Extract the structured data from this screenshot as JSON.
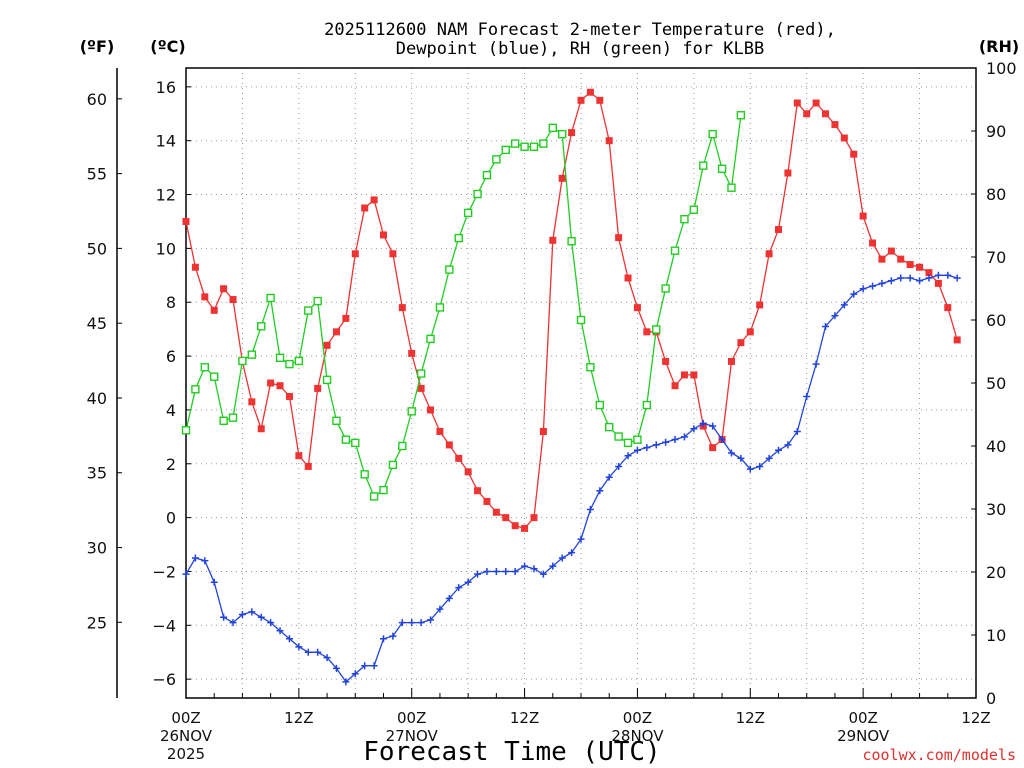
{
  "chart_data": {
    "type": "line",
    "title_line1": "2025112600 NAM Forecast 2-meter Temperature (red),",
    "title_line2": "Dewpoint (blue), RH (green) for KLBB",
    "left_outer_unit": "(ºF)",
    "left_inner_unit": "(ºC)",
    "right_unit": "(RH)",
    "xlabel": "Forecast Time (UTC)",
    "credit": "coolwx.com/models",
    "x_ticks": [
      {
        "hour": 0,
        "label": "00Z",
        "date": "26NOV",
        "year": "2025"
      },
      {
        "hour": 12,
        "label": "12Z",
        "date": "",
        "year": ""
      },
      {
        "hour": 24,
        "label": "00Z",
        "date": "27NOV",
        "year": ""
      },
      {
        "hour": 36,
        "label": "12Z",
        "date": "",
        "year": ""
      },
      {
        "hour": 48,
        "label": "00Z",
        "date": "28NOV",
        "year": ""
      },
      {
        "hour": 60,
        "label": "12Z",
        "date": "",
        "year": ""
      },
      {
        "hour": 72,
        "label": "00Z",
        "date": "29NOV",
        "year": ""
      },
      {
        "hour": 84,
        "label": "12Z",
        "date": "",
        "year": ""
      }
    ],
    "x_range_hours": [
      0,
      84
    ],
    "celsius_range": [
      -6.7,
      16.7
    ],
    "celsius_ticks": [
      -6,
      -4,
      -2,
      0,
      2,
      4,
      6,
      8,
      10,
      12,
      14,
      16
    ],
    "fahrenheit_ticks": [
      25,
      30,
      35,
      40,
      45,
      50,
      55,
      60
    ],
    "rh_range": [
      0,
      100
    ],
    "rh_ticks": [
      0,
      10,
      20,
      30,
      40,
      50,
      60,
      70,
      80,
      90,
      100
    ],
    "grid": "dotted",
    "colors": {
      "temperature": "#ee3333",
      "dewpoint": "#2244dd",
      "rh": "#22cc22",
      "credit": "#e03030"
    },
    "series": [
      {
        "key": "temperature",
        "unit": "C",
        "marker": "filled-square",
        "values": [
          [
            0,
            11.0
          ],
          [
            1,
            9.3
          ],
          [
            2,
            8.2
          ],
          [
            3,
            7.7
          ],
          [
            4,
            8.5
          ],
          [
            5,
            8.1
          ],
          [
            6,
            5.8
          ],
          [
            7,
            4.3
          ],
          [
            8,
            3.3
          ],
          [
            9,
            5.0
          ],
          [
            10,
            4.9
          ],
          [
            11,
            4.5
          ],
          [
            12,
            2.3
          ],
          [
            13,
            1.9
          ],
          [
            14,
            4.8
          ],
          [
            15,
            6.4
          ],
          [
            16,
            6.9
          ],
          [
            17,
            7.4
          ],
          [
            18,
            9.8
          ],
          [
            19,
            11.5
          ],
          [
            20,
            11.8
          ],
          [
            21,
            10.5
          ],
          [
            22,
            9.8
          ],
          [
            23,
            7.8
          ],
          [
            24,
            6.1
          ],
          [
            25,
            4.8
          ],
          [
            26,
            4.0
          ],
          [
            27,
            3.2
          ],
          [
            28,
            2.7
          ],
          [
            29,
            2.2
          ],
          [
            30,
            1.7
          ],
          [
            31,
            1.0
          ],
          [
            32,
            0.6
          ],
          [
            33,
            0.2
          ],
          [
            34,
            0.0
          ],
          [
            35,
            -0.3
          ],
          [
            36,
            -0.4
          ],
          [
            37,
            0.0
          ],
          [
            38,
            3.2
          ],
          [
            39,
            10.3
          ],
          [
            40,
            12.6
          ],
          [
            41,
            14.3
          ],
          [
            42,
            15.5
          ],
          [
            43,
            15.8
          ],
          [
            44,
            15.5
          ],
          [
            45,
            14.0
          ],
          [
            46,
            10.4
          ],
          [
            47,
            8.9
          ],
          [
            48,
            7.8
          ],
          [
            49,
            6.9
          ],
          [
            50,
            6.9
          ],
          [
            51,
            5.8
          ],
          [
            52,
            4.9
          ],
          [
            53,
            5.3
          ],
          [
            54,
            5.3
          ],
          [
            55,
            3.4
          ],
          [
            56,
            2.6
          ],
          [
            57,
            2.9
          ],
          [
            58,
            5.8
          ],
          [
            59,
            6.5
          ],
          [
            60,
            6.9
          ],
          [
            61,
            7.9
          ],
          [
            62,
            9.8
          ],
          [
            63,
            10.7
          ],
          [
            64,
            12.8
          ],
          [
            65,
            15.4
          ],
          [
            66,
            15.0
          ],
          [
            67,
            15.4
          ],
          [
            68,
            15.0
          ],
          [
            69,
            14.6
          ],
          [
            70,
            14.1
          ],
          [
            71,
            13.5
          ],
          [
            72,
            11.2
          ],
          [
            73,
            10.2
          ],
          [
            74,
            9.6
          ],
          [
            75,
            9.9
          ],
          [
            76,
            9.6
          ],
          [
            77,
            9.4
          ],
          [
            78,
            9.3
          ],
          [
            79,
            9.1
          ],
          [
            80,
            8.7
          ],
          [
            81,
            7.8
          ],
          [
            82,
            6.6
          ]
        ]
      },
      {
        "key": "dewpoint",
        "unit": "C",
        "marker": "plus",
        "values": [
          [
            0,
            -2.1
          ],
          [
            1,
            -1.5
          ],
          [
            2,
            -1.6
          ],
          [
            3,
            -2.4
          ],
          [
            4,
            -3.7
          ],
          [
            5,
            -3.9
          ],
          [
            6,
            -3.6
          ],
          [
            7,
            -3.5
          ],
          [
            8,
            -3.7
          ],
          [
            9,
            -3.9
          ],
          [
            10,
            -4.2
          ],
          [
            11,
            -4.5
          ],
          [
            12,
            -4.8
          ],
          [
            13,
            -5.0
          ],
          [
            14,
            -5.0
          ],
          [
            15,
            -5.2
          ],
          [
            16,
            -5.6
          ],
          [
            17,
            -6.1
          ],
          [
            18,
            -5.8
          ],
          [
            19,
            -5.5
          ],
          [
            20,
            -5.5
          ],
          [
            21,
            -4.5
          ],
          [
            22,
            -4.4
          ],
          [
            23,
            -3.9
          ],
          [
            24,
            -3.9
          ],
          [
            25,
            -3.9
          ],
          [
            26,
            -3.8
          ],
          [
            27,
            -3.4
          ],
          [
            28,
            -3.0
          ],
          [
            29,
            -2.6
          ],
          [
            30,
            -2.4
          ],
          [
            31,
            -2.1
          ],
          [
            32,
            -2.0
          ],
          [
            33,
            -2.0
          ],
          [
            34,
            -2.0
          ],
          [
            35,
            -2.0
          ],
          [
            36,
            -1.8
          ],
          [
            37,
            -1.9
          ],
          [
            38,
            -2.1
          ],
          [
            39,
            -1.8
          ],
          [
            40,
            -1.5
          ],
          [
            41,
            -1.3
          ],
          [
            42,
            -0.8
          ],
          [
            43,
            0.3
          ],
          [
            44,
            1.0
          ],
          [
            45,
            1.5
          ],
          [
            46,
            1.9
          ],
          [
            47,
            2.3
          ],
          [
            48,
            2.5
          ],
          [
            49,
            2.6
          ],
          [
            50,
            2.7
          ],
          [
            51,
            2.8
          ],
          [
            52,
            2.9
          ],
          [
            53,
            3.0
          ],
          [
            54,
            3.3
          ],
          [
            55,
            3.5
          ],
          [
            56,
            3.4
          ],
          [
            57,
            2.9
          ],
          [
            58,
            2.4
          ],
          [
            59,
            2.2
          ],
          [
            60,
            1.8
          ],
          [
            61,
            1.9
          ],
          [
            62,
            2.2
          ],
          [
            63,
            2.5
          ],
          [
            64,
            2.7
          ],
          [
            65,
            3.2
          ],
          [
            66,
            4.5
          ],
          [
            67,
            5.7
          ],
          [
            68,
            7.1
          ],
          [
            69,
            7.5
          ],
          [
            70,
            7.9
          ],
          [
            71,
            8.3
          ],
          [
            72,
            8.5
          ],
          [
            73,
            8.6
          ],
          [
            74,
            8.7
          ],
          [
            75,
            8.8
          ],
          [
            76,
            8.9
          ],
          [
            77,
            8.9
          ],
          [
            78,
            8.8
          ],
          [
            79,
            8.9
          ],
          [
            80,
            9.0
          ],
          [
            81,
            9.0
          ],
          [
            82,
            8.9
          ]
        ]
      },
      {
        "key": "rh",
        "unit": "%",
        "marker": "open-square",
        "values": [
          [
            0,
            42.5
          ],
          [
            1,
            49
          ],
          [
            2,
            52.5
          ],
          [
            3,
            51
          ],
          [
            4,
            44
          ],
          [
            5,
            44.5
          ],
          [
            6,
            53.5
          ],
          [
            7,
            54.5
          ],
          [
            8,
            59
          ],
          [
            9,
            63.5
          ],
          [
            10,
            54
          ],
          [
            11,
            53
          ],
          [
            12,
            53.5
          ],
          [
            13,
            61.5
          ],
          [
            14,
            63
          ],
          [
            15,
            50.5
          ],
          [
            16,
            44
          ],
          [
            17,
            41
          ],
          [
            18,
            40.5
          ],
          [
            19,
            35.5
          ],
          [
            20,
            32
          ],
          [
            21,
            33
          ],
          [
            22,
            37
          ],
          [
            23,
            40
          ],
          [
            24,
            45.5
          ],
          [
            25,
            51.5
          ],
          [
            26,
            57
          ],
          [
            27,
            62
          ],
          [
            28,
            68
          ],
          [
            29,
            73
          ],
          [
            30,
            77
          ],
          [
            31,
            80
          ],
          [
            32,
            83
          ],
          [
            33,
            85.5
          ],
          [
            34,
            87
          ],
          [
            35,
            88
          ],
          [
            36,
            87.5
          ],
          [
            37,
            87.5
          ],
          [
            38,
            88
          ],
          [
            39,
            90.5
          ],
          [
            40,
            89.5
          ],
          [
            41,
            72.5
          ],
          [
            42,
            60
          ],
          [
            43,
            52.5
          ],
          [
            44,
            46.5
          ],
          [
            45,
            43
          ],
          [
            46,
            41.5
          ],
          [
            47,
            40.5
          ],
          [
            48,
            41
          ],
          [
            49,
            46.5
          ],
          [
            50,
            58.5
          ],
          [
            51,
            65
          ],
          [
            52,
            71
          ],
          [
            53,
            76
          ],
          [
            54,
            77.5
          ],
          [
            55,
            84.5
          ],
          [
            56,
            89.5
          ],
          [
            57,
            84
          ],
          [
            58,
            81
          ],
          [
            59,
            92.5
          ]
        ]
      }
    ]
  }
}
